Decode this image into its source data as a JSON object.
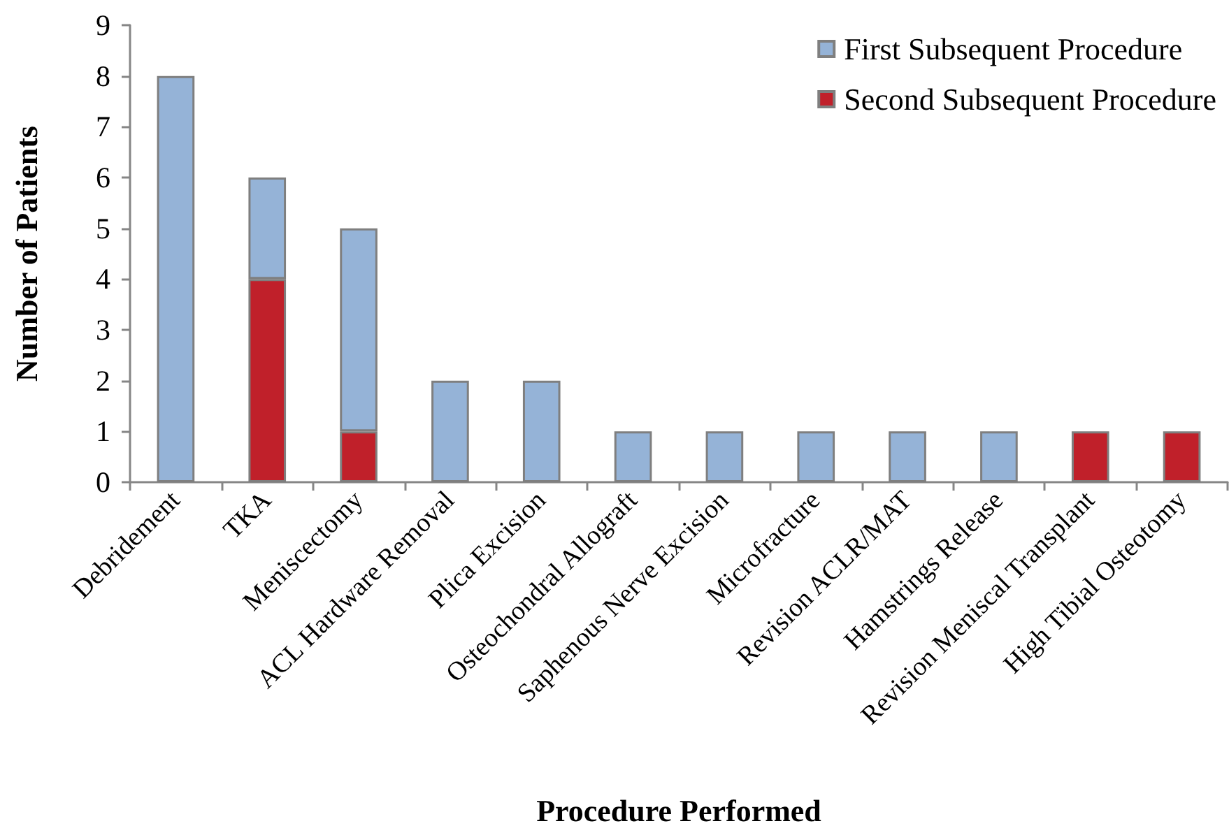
{
  "chart_data": {
    "type": "bar",
    "xlabel": "Procedure Performed",
    "ylabel": "Number of Patients",
    "categories": [
      "Debridement",
      "TKA",
      "Meniscectomy",
      "ACL Hardware Removal",
      "Plica Excision",
      "Osteochondral Allograft",
      "Saphenous Nerve Excision",
      "Microfracture",
      "Revision ACLR/MAT",
      "Hamstrings Release",
      "Revision Meniscal Transplant",
      "High Tibial Osteotomy"
    ],
    "series": [
      {
        "name": "Second Subsequent Procedure",
        "color": "#c0202a",
        "values": [
          null,
          4,
          1,
          null,
          null,
          null,
          null,
          null,
          null,
          null,
          1,
          1
        ]
      },
      {
        "name": "First Subsequent Procedure",
        "color": "#95b3d7",
        "values": [
          8,
          2,
          4,
          2,
          2,
          1,
          1,
          1,
          1,
          1,
          null,
          null
        ]
      }
    ],
    "stacked": true,
    "ylim": [
      0,
      9
    ],
    "yticks": [
      0,
      1,
      2,
      3,
      4,
      5,
      6,
      7,
      8,
      9
    ],
    "grid": false,
    "legend": "top right"
  }
}
